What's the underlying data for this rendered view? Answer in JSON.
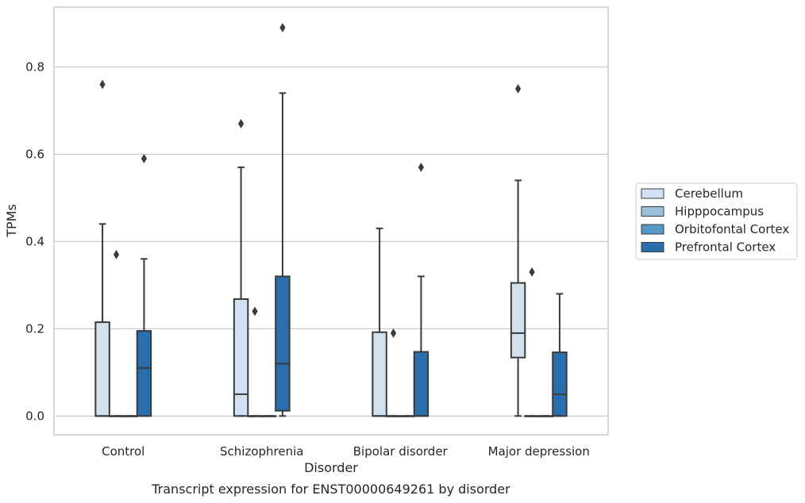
{
  "chart_data": {
    "type": "box",
    "title": "Transcript expression for ENST00000649261 by disorder",
    "xlabel": "Disorder",
    "ylabel": "TPMs",
    "categories": [
      "Control",
      "Schizophrenia",
      "Bipolar disorder",
      "Major depression"
    ],
    "yticks": [
      "0.0",
      "0.2",
      "0.4",
      "0.6",
      "0.8"
    ],
    "ylim": [
      -0.043,
      0.937
    ],
    "grid": "horizontal",
    "legend_position": "right",
    "series": [
      {
        "name": "Cerebellum",
        "color": "#d2e1f0",
        "boxes": [
          {
            "category": "Control",
            "whislo": 0.0,
            "q1": 0.0,
            "median": 0.0,
            "q3": 0.215,
            "whishi": 0.44,
            "fliers": [
              0.76
            ]
          },
          {
            "category": "Schizophrenia",
            "whislo": 0.0,
            "q1": 0.0,
            "median": 0.05,
            "q3": 0.268,
            "whishi": 0.57,
            "fliers": [
              0.67
            ]
          },
          {
            "category": "Bipolar disorder",
            "whislo": 0.0,
            "q1": 0.0,
            "median": 0.0,
            "q3": 0.192,
            "whishi": 0.43,
            "fliers": []
          },
          {
            "category": "Major depression",
            "whislo": 0.0,
            "q1": 0.134,
            "median": 0.19,
            "q3": 0.305,
            "whishi": 0.54,
            "fliers": [
              0.75
            ]
          }
        ]
      },
      {
        "name": "Hipppocampus",
        "color": "#9ac1dc",
        "boxes": [
          {
            "category": "Control",
            "whislo": 0.0,
            "q1": 0.0,
            "median": 0.0,
            "q3": 0.0,
            "whishi": 0.0,
            "fliers": [
              0.37
            ]
          },
          {
            "category": "Schizophrenia",
            "whislo": 0.0,
            "q1": 0.0,
            "median": 0.0,
            "q3": 0.0,
            "whishi": 0.0,
            "fliers": [
              0.24
            ]
          },
          {
            "category": "Bipolar disorder",
            "whislo": 0.0,
            "q1": 0.0,
            "median": 0.0,
            "q3": 0.0,
            "whishi": 0.0,
            "fliers": [
              0.19
            ]
          },
          {
            "category": "Major depression",
            "whislo": 0.0,
            "q1": 0.0,
            "median": 0.0,
            "q3": 0.0,
            "whishi": 0.0,
            "fliers": [
              0.33
            ]
          }
        ]
      },
      {
        "name": "Orbitofontal Cortex",
        "color": "#5699c6",
        "boxes": [
          {
            "category": "Control",
            "whislo": 0.0,
            "q1": 0.0,
            "median": 0.0,
            "q3": 0.0,
            "whishi": 0.0,
            "fliers": []
          },
          {
            "category": "Schizophrenia",
            "whislo": 0.0,
            "q1": 0.0,
            "median": 0.0,
            "q3": 0.0,
            "whishi": 0.0,
            "fliers": []
          },
          {
            "category": "Bipolar disorder",
            "whislo": 0.0,
            "q1": 0.0,
            "median": 0.0,
            "q3": 0.0,
            "whishi": 0.0,
            "fliers": []
          },
          {
            "category": "Major depression",
            "whislo": 0.0,
            "q1": 0.0,
            "median": 0.0,
            "q3": 0.0,
            "whishi": 0.0,
            "fliers": []
          }
        ]
      },
      {
        "name": "Prefrontal Cortex",
        "color": "#2b6eae",
        "boxes": [
          {
            "category": "Control",
            "whislo": 0.0,
            "q1": 0.0,
            "median": 0.11,
            "q3": 0.195,
            "whishi": 0.36,
            "fliers": [
              0.59
            ]
          },
          {
            "category": "Schizophrenia",
            "whislo": 0.0,
            "q1": 0.012,
            "median": 0.12,
            "q3": 0.32,
            "whishi": 0.74,
            "fliers": [
              0.89
            ]
          },
          {
            "category": "Bipolar disorder",
            "whislo": 0.0,
            "q1": 0.0,
            "median": 0.0,
            "q3": 0.147,
            "whishi": 0.32,
            "fliers": [
              0.57
            ]
          },
          {
            "category": "Major depression",
            "whislo": 0.0,
            "q1": 0.0,
            "median": 0.05,
            "q3": 0.146,
            "whishi": 0.28,
            "fliers": []
          }
        ]
      }
    ]
  }
}
